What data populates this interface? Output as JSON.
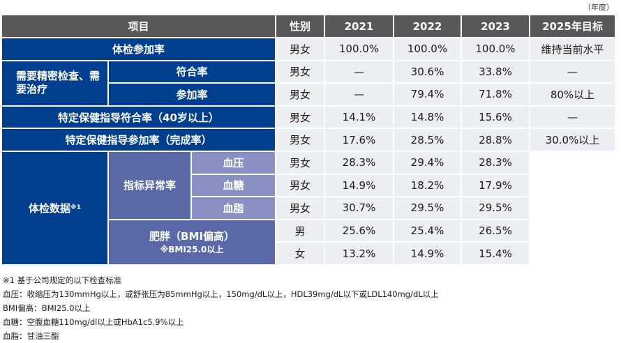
{
  "unit_label": "（年度）",
  "header": {
    "item": "项目",
    "gender": "性别",
    "years": [
      "2021",
      "2022",
      "2023"
    ],
    "target": "2025年目标"
  },
  "labels": {
    "exam_rate": "体检参加率",
    "detailed_exam": "需要精密检查、需要治疗",
    "eligible_rate": "符合率",
    "participation_rate": "参加率",
    "health_guidance_eligible": "特定保健指导符合率（40岁以上）",
    "health_guidance_participation": "特定保健指导参加率（完成率）",
    "exam_data": "体检数据",
    "exam_data_note": "※1",
    "abnormal_rate": "指标异常率",
    "blood_pressure": "血压",
    "blood_sugar": "血糖",
    "blood_lipid": "血脂",
    "obesity": "肥胖（BMI偏高）",
    "obesity_note": "※BMI25.0以上"
  },
  "rows": [
    {
      "gender": "男女",
      "values": [
        "100.0%",
        "100.0%",
        "100.0%"
      ],
      "target": "维持当前水平"
    },
    {
      "gender": "男女",
      "values": [
        "—",
        "30.6%",
        "33.8%"
      ],
      "target": "—"
    },
    {
      "gender": "男女",
      "values": [
        "—",
        "79.4%",
        "71.8%"
      ],
      "target": "80%以上"
    },
    {
      "gender": "男女",
      "values": [
        "14.1%",
        "14.8%",
        "15.6%"
      ],
      "target": "—"
    },
    {
      "gender": "男女",
      "values": [
        "17.6%",
        "28.5%",
        "28.8%"
      ],
      "target": "30.0%以上"
    },
    {
      "gender": "男女",
      "values": [
        "28.3%",
        "29.4%",
        "28.3%"
      ]
    },
    {
      "gender": "男女",
      "values": [
        "14.9%",
        "18.2%",
        "17.9%"
      ]
    },
    {
      "gender": "男女",
      "values": [
        "30.7%",
        "29.5%",
        "29.5%"
      ]
    },
    {
      "gender": "男",
      "values": [
        "25.6%",
        "25.4%",
        "26.5%"
      ]
    },
    {
      "gender": "女",
      "values": [
        "13.2%",
        "14.9%",
        "15.4%"
      ]
    }
  ],
  "footnotes": [
    "※1 基于公司规定的以下检查标准",
    "血压：收缩压为130mmHg以上，或舒张压为85mmHg以上，150mg/dL以上，HDL39mg/dL以下或LDL140mg/dL以上",
    "BMI偏高：BMI25.0以上",
    "血糖：空腹血糖110mg/dl以上或HbA1c5.9%以上",
    "血脂：甘油三酯"
  ]
}
